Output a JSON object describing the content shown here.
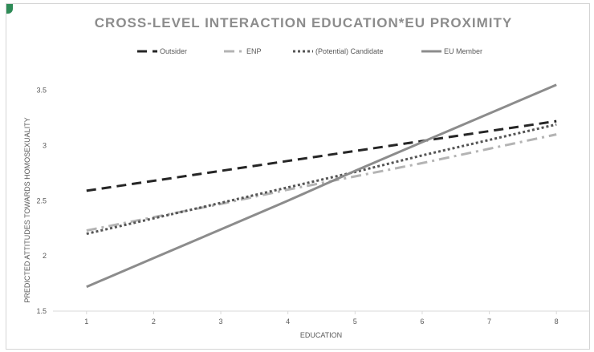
{
  "chart_data": {
    "type": "line",
    "title": "CROSS-LEVEL INTERACTION EDUCATION*EU PROXIMITY",
    "xlabel": "EDUCATION",
    "ylabel": "PREDICTED ATTITUDES TOWARDS HOMOSEXUALITY",
    "x": [
      1,
      2,
      3,
      4,
      5,
      6,
      7,
      8
    ],
    "x_tick_labels": [
      "1",
      "2",
      "3",
      "4",
      "5",
      "6",
      "7",
      "8"
    ],
    "ylim": [
      1.5,
      3.7
    ],
    "y_ticks": [
      1.5,
      2,
      2.5,
      3,
      3.5
    ],
    "y_tick_labels": [
      "1.5",
      "2",
      "2.5",
      "3",
      "3.5"
    ],
    "grid": false,
    "legend_position": "top",
    "series": [
      {
        "name": "Outsider",
        "values": [
          2.59,
          2.68,
          2.77,
          2.86,
          2.95,
          3.04,
          3.13,
          3.22
        ],
        "color": "#262626",
        "dash": "long-dash"
      },
      {
        "name": "ENP",
        "values": [
          2.23,
          2.35,
          2.47,
          2.6,
          2.72,
          2.84,
          2.97,
          3.1
        ],
        "color": "#b4b4b4",
        "dash": "dash-dot"
      },
      {
        "name": "(Potential) Candidate",
        "values": [
          2.2,
          2.34,
          2.48,
          2.62,
          2.76,
          2.91,
          3.05,
          3.19
        ],
        "color": "#555555",
        "dash": "dot"
      },
      {
        "name": "EU Member",
        "values": [
          1.72,
          1.98,
          2.24,
          2.5,
          2.77,
          3.03,
          3.29,
          3.55
        ],
        "color": "#8c8c8c",
        "dash": "solid"
      }
    ]
  }
}
